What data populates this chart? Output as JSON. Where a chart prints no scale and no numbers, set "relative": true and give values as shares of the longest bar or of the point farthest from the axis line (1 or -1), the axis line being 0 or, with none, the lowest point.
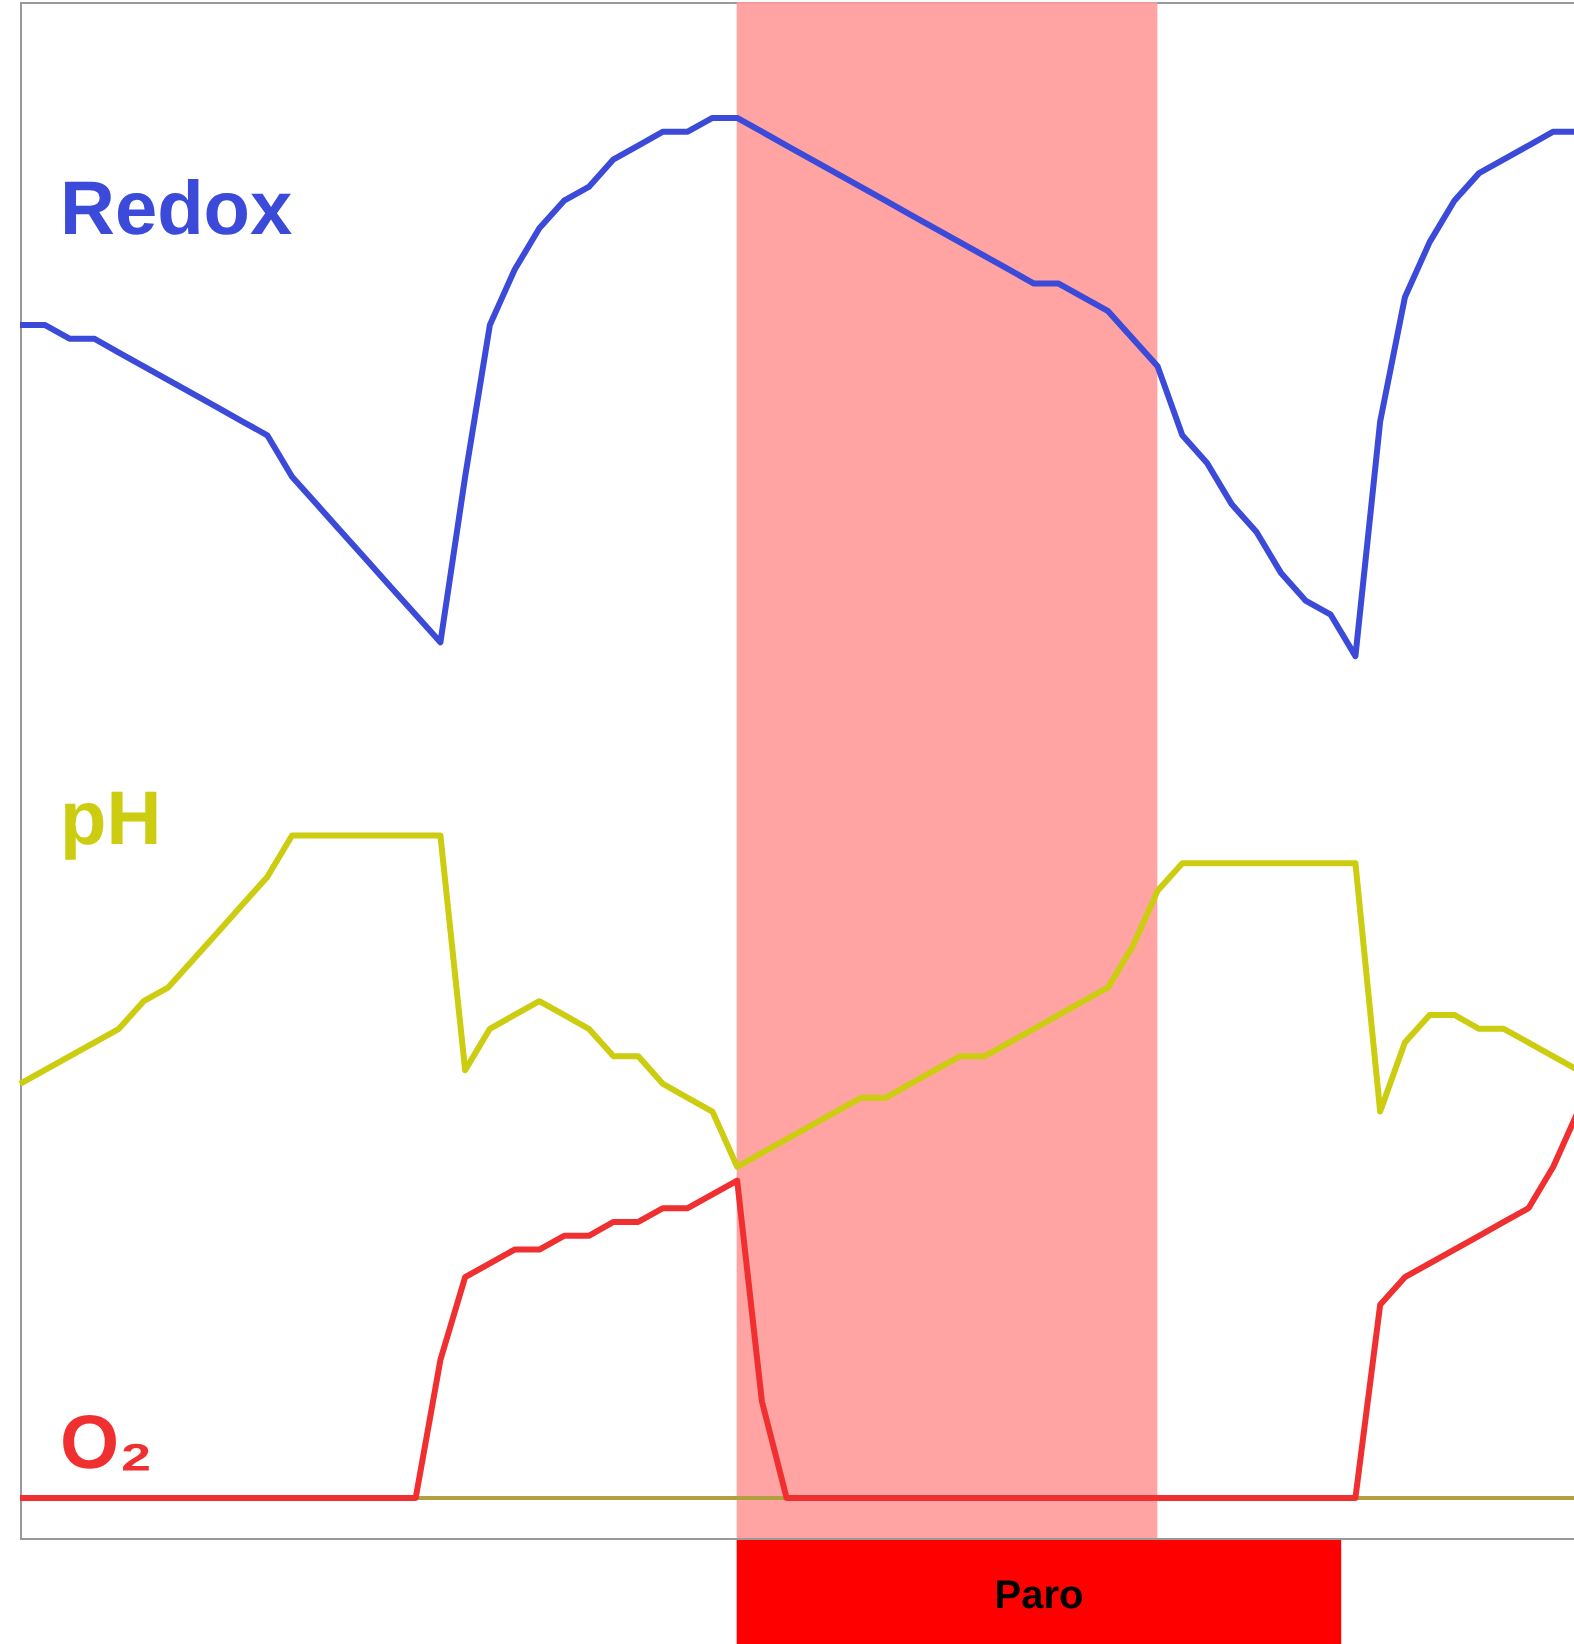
{
  "chart_data": {
    "type": "line",
    "relative": true,
    "tick_labels": false,
    "categories": [
      null,
      null,
      null,
      null,
      null,
      null,
      null,
      null,
      null,
      null,
      null,
      null,
      null,
      null,
      null,
      null,
      null,
      null,
      null,
      null,
      null,
      null,
      null,
      null,
      null,
      null,
      null,
      null,
      null,
      null,
      null,
      null,
      null,
      null,
      null,
      null,
      null,
      null,
      null,
      null,
      null,
      null,
      null,
      null,
      null,
      null,
      null,
      null,
      null,
      null,
      null,
      null,
      null,
      null,
      null,
      null,
      null,
      null,
      null,
      null,
      null,
      null,
      null,
      null
    ],
    "series": [
      {
        "name": "Redox",
        "color": "#3b4ad8",
        "values": [
          0.85,
          0.85,
          0.84,
          0.84,
          0.83,
          0.82,
          0.81,
          0.8,
          0.79,
          0.78,
          0.77,
          0.74,
          0.72,
          0.7,
          0.68,
          0.66,
          0.64,
          0.62,
          0.74,
          0.85,
          0.89,
          0.92,
          0.94,
          0.95,
          0.97,
          0.98,
          0.99,
          0.99,
          1.0,
          1.0,
          0.99,
          0.98,
          0.97,
          0.96,
          0.95,
          0.94,
          0.93,
          0.92,
          0.91,
          0.9,
          0.89,
          0.88,
          0.88,
          0.87,
          0.86,
          0.84,
          0.82,
          0.77,
          0.75,
          0.72,
          0.7,
          0.67,
          0.65,
          0.64,
          0.61,
          0.78,
          0.87,
          0.91,
          0.94,
          0.96,
          0.97,
          0.98,
          0.99,
          0.99
        ]
      },
      {
        "name": "pH",
        "color": "#cccc10",
        "values": [
          0.3,
          0.31,
          0.32,
          0.33,
          0.34,
          0.36,
          0.37,
          0.39,
          0.41,
          0.43,
          0.45,
          0.48,
          0.48,
          0.48,
          0.48,
          0.48,
          0.48,
          0.48,
          0.31,
          0.34,
          0.35,
          0.36,
          0.35,
          0.34,
          0.32,
          0.32,
          0.3,
          0.29,
          0.28,
          0.24,
          0.25,
          0.26,
          0.27,
          0.28,
          0.29,
          0.29,
          0.3,
          0.31,
          0.32,
          0.32,
          0.33,
          0.34,
          0.35,
          0.36,
          0.37,
          0.4,
          0.44,
          0.46,
          0.46,
          0.46,
          0.46,
          0.46,
          0.46,
          0.46,
          0.46,
          0.28,
          0.33,
          0.35,
          0.35,
          0.34,
          0.34,
          0.33,
          0.32,
          0.31
        ]
      },
      {
        "name": "O₂",
        "color": "#f03030",
        "values": [
          0,
          0,
          0,
          0,
          0,
          0,
          0,
          0,
          0,
          0,
          0,
          0,
          0,
          0,
          0,
          0,
          0,
          0.1,
          0.16,
          0.17,
          0.18,
          0.18,
          0.19,
          0.19,
          0.2,
          0.2,
          0.21,
          0.21,
          0.22,
          0.23,
          0.07,
          0,
          0,
          0,
          0,
          0,
          0,
          0,
          0,
          0,
          0,
          0,
          0,
          0,
          0,
          0,
          0,
          0,
          0,
          0,
          0,
          0,
          0,
          0,
          0,
          0.14,
          0.16,
          0.17,
          0.18,
          0.19,
          0.2,
          0.21,
          0.24,
          0.28
        ]
      }
    ],
    "annotations": [
      "Paro"
    ]
  }
}
